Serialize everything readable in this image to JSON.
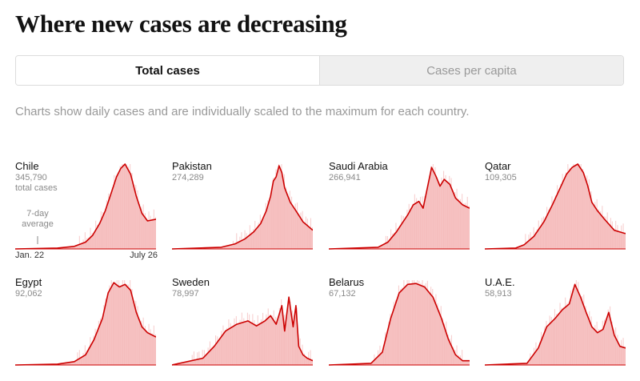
{
  "header": {
    "title": "Where new cases are decreasing"
  },
  "tabs": [
    {
      "label": "Total cases",
      "active": true
    },
    {
      "label": "Cases per capita",
      "active": false
    }
  ],
  "description": "Charts show daily cases and are individually scaled to the maximum for each country.",
  "legend": {
    "avg_label": "7-day average",
    "date_start": "Jan. 22",
    "date_end": "July 26",
    "total_suffix": "total cases"
  },
  "colors": {
    "line": "#cc0000",
    "area": "#f5b9b8",
    "baseline": "#cc0000"
  },
  "chart_data": [
    {
      "type": "area",
      "country": "Chile",
      "total": "345,790",
      "x": [
        0.0,
        0.3,
        0.42,
        0.5,
        0.55,
        0.6,
        0.64,
        0.68,
        0.72,
        0.75,
        0.78,
        0.82,
        0.86,
        0.9,
        0.94,
        1.0
      ],
      "y": [
        0.0,
        0.01,
        0.03,
        0.08,
        0.16,
        0.3,
        0.45,
        0.65,
        0.85,
        0.95,
        1.0,
        0.88,
        0.62,
        0.42,
        0.33,
        0.35
      ]
    },
    {
      "type": "area",
      "country": "Pakistan",
      "total": "274,289",
      "x": [
        0.0,
        0.35,
        0.45,
        0.52,
        0.58,
        0.63,
        0.67,
        0.7,
        0.72,
        0.74,
        0.76,
        0.78,
        0.8,
        0.84,
        0.88,
        0.93,
        1.0
      ],
      "y": [
        0.0,
        0.02,
        0.06,
        0.12,
        0.2,
        0.3,
        0.45,
        0.62,
        0.8,
        0.85,
        0.98,
        0.9,
        0.72,
        0.55,
        0.45,
        0.32,
        0.22
      ]
    },
    {
      "type": "area",
      "country": "Saudi Arabia",
      "total": "266,941",
      "x": [
        0.0,
        0.35,
        0.42,
        0.48,
        0.52,
        0.56,
        0.6,
        0.64,
        0.67,
        0.7,
        0.73,
        0.76,
        0.79,
        0.82,
        0.86,
        0.9,
        0.95,
        1.0
      ],
      "y": [
        0.0,
        0.02,
        0.08,
        0.2,
        0.3,
        0.4,
        0.52,
        0.56,
        0.48,
        0.72,
        0.96,
        0.86,
        0.74,
        0.82,
        0.76,
        0.6,
        0.52,
        0.48
      ]
    },
    {
      "type": "area",
      "country": "Qatar",
      "total": "109,305",
      "x": [
        0.0,
        0.22,
        0.28,
        0.35,
        0.42,
        0.48,
        0.53,
        0.58,
        0.62,
        0.66,
        0.7,
        0.73,
        0.76,
        0.8,
        0.85,
        0.92,
        1.0
      ],
      "y": [
        0.0,
        0.01,
        0.05,
        0.15,
        0.32,
        0.52,
        0.7,
        0.88,
        0.96,
        1.0,
        0.9,
        0.75,
        0.55,
        0.45,
        0.35,
        0.22,
        0.18
      ]
    },
    {
      "type": "area",
      "country": "Egypt",
      "total": "92,062",
      "x": [
        0.0,
        0.3,
        0.42,
        0.5,
        0.56,
        0.62,
        0.66,
        0.7,
        0.74,
        0.78,
        0.82,
        0.86,
        0.9,
        0.94,
        1.0
      ],
      "y": [
        0.0,
        0.01,
        0.04,
        0.12,
        0.3,
        0.55,
        0.85,
        0.97,
        0.92,
        0.95,
        0.88,
        0.62,
        0.45,
        0.38,
        0.33
      ]
    },
    {
      "type": "area",
      "country": "Sweden",
      "total": "78,997",
      "x": [
        0.0,
        0.22,
        0.3,
        0.38,
        0.46,
        0.54,
        0.6,
        0.66,
        0.7,
        0.74,
        0.78,
        0.8,
        0.83,
        0.86,
        0.88,
        0.9,
        0.93,
        0.96,
        1.0
      ],
      "y": [
        0.0,
        0.08,
        0.22,
        0.4,
        0.48,
        0.52,
        0.46,
        0.52,
        0.58,
        0.48,
        0.7,
        0.4,
        0.8,
        0.45,
        0.7,
        0.22,
        0.12,
        0.08,
        0.05
      ]
    },
    {
      "type": "area",
      "country": "Belarus",
      "total": "67,132",
      "x": [
        0.0,
        0.3,
        0.38,
        0.44,
        0.5,
        0.56,
        0.62,
        0.68,
        0.74,
        0.8,
        0.85,
        0.9,
        0.95,
        1.0
      ],
      "y": [
        0.0,
        0.02,
        0.15,
        0.55,
        0.85,
        0.95,
        0.96,
        0.92,
        0.8,
        0.55,
        0.3,
        0.12,
        0.05,
        0.05
      ]
    },
    {
      "type": "area",
      "country": "U.A.E.",
      "total": "58,913",
      "x": [
        0.0,
        0.3,
        0.38,
        0.44,
        0.5,
        0.55,
        0.6,
        0.64,
        0.68,
        0.72,
        0.76,
        0.8,
        0.84,
        0.88,
        0.92,
        0.96,
        1.0
      ],
      "y": [
        0.0,
        0.02,
        0.2,
        0.45,
        0.55,
        0.65,
        0.72,
        0.95,
        0.8,
        0.62,
        0.45,
        0.38,
        0.42,
        0.62,
        0.35,
        0.22,
        0.2
      ]
    }
  ]
}
